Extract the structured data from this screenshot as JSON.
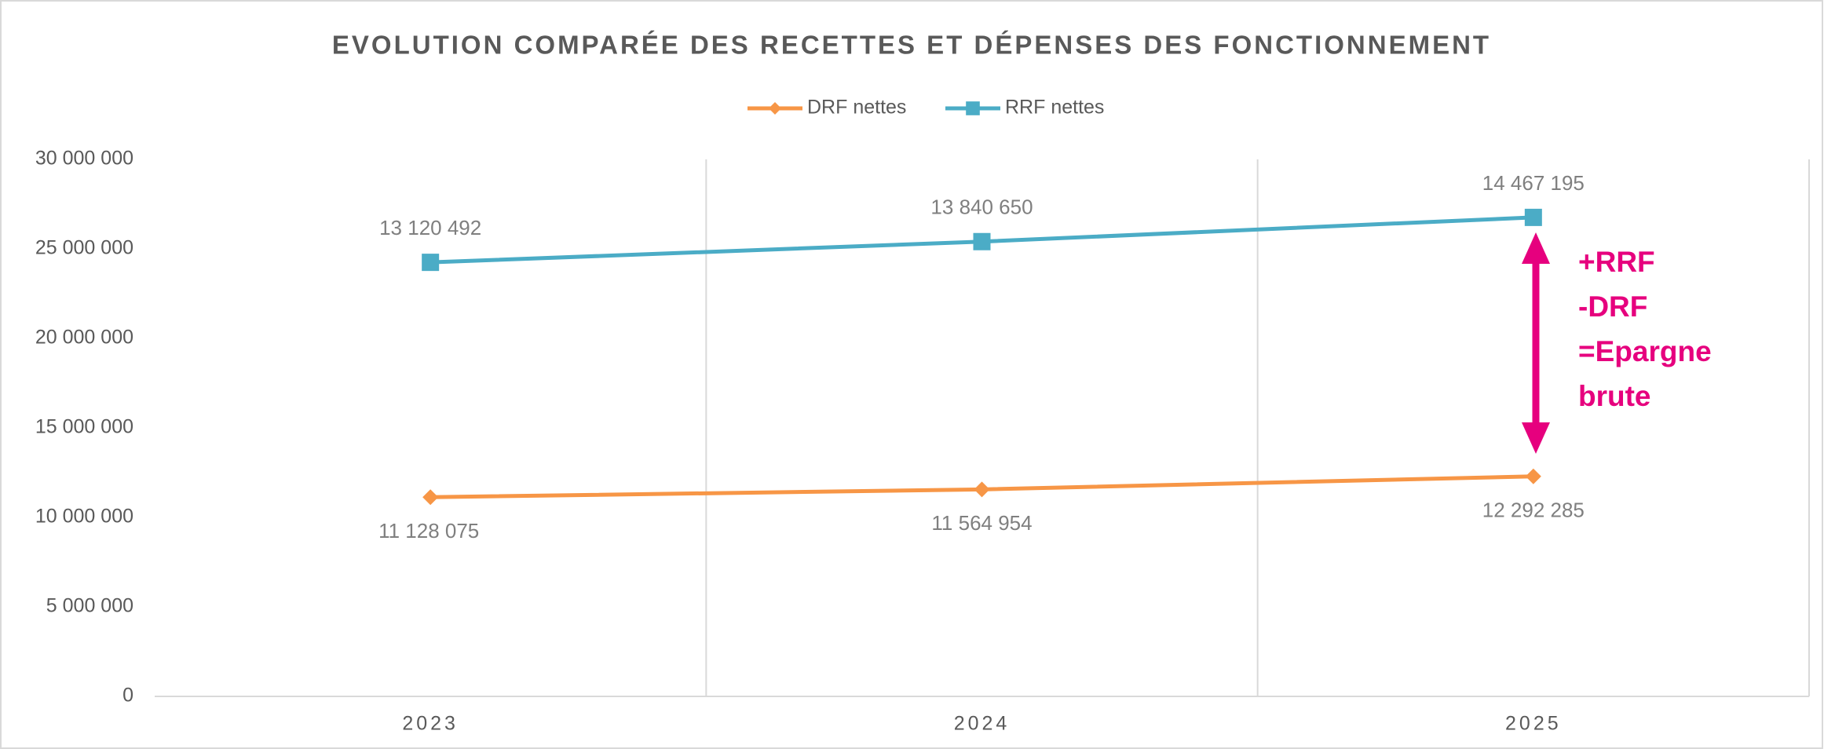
{
  "chart_data": {
    "type": "line",
    "stacked": true,
    "title": "EVOLUTION COMPARÉE DES RECETTES ET DÉPENSES DES FONCTIONNEMENT",
    "categories": [
      "2023",
      "2024",
      "2025"
    ],
    "series": [
      {
        "name": "DRF nettes",
        "color": "#f79646",
        "marker": "diamond",
        "values": [
          11128075,
          11564954,
          12292285
        ],
        "value_labels": [
          "11 128 075",
          "11 564 954",
          "12 292 285"
        ]
      },
      {
        "name": "RRF nettes",
        "color": "#4bacc6",
        "marker": "square",
        "values": [
          13120492,
          13840650,
          14467195
        ],
        "value_labels": [
          "13 120 492",
          "13 840 650",
          "14 467 195"
        ]
      }
    ],
    "ylim": [
      0,
      30000000
    ],
    "yticks": [
      0,
      {
        "value": 5000000,
        "label": "5 000 000"
      },
      {
        "value": 10000000,
        "label": "10 000 000"
      },
      {
        "value": 15000000,
        "label": "15 000 000"
      },
      {
        "value": 20000000,
        "label": "20 000 000"
      },
      {
        "value": 25000000,
        "label": "25 000 000"
      },
      {
        "value": 30000000,
        "label": "30 000 000"
      }
    ],
    "annotation": {
      "lines": [
        "+RRF",
        "-DRF",
        "=Epargne",
        "brute"
      ],
      "color": "#e6007e"
    },
    "grid": true,
    "legend": "top"
  }
}
